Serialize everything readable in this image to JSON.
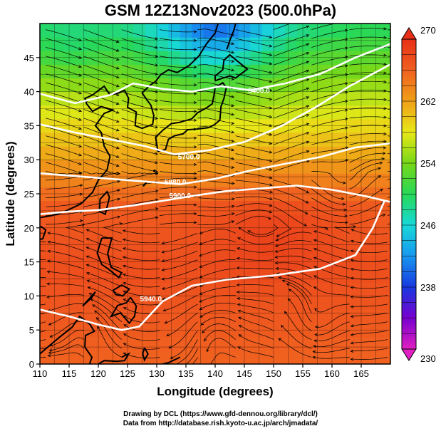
{
  "title": "GSM 12Z13Nov2023 (500.0hPa)",
  "xaxis": {
    "label": "Longitude (degrees)",
    "range": [
      110,
      170
    ],
    "ticks": [
      110,
      115,
      120,
      125,
      130,
      135,
      140,
      145,
      150,
      155,
      160,
      165
    ]
  },
  "yaxis": {
    "label": "Latitude  (degrees)",
    "range": [
      0,
      50
    ],
    "ticks": [
      0,
      5,
      10,
      15,
      20,
      25,
      30,
      35,
      40,
      45
    ]
  },
  "colorbar": {
    "min": 230,
    "max": 270,
    "tick_labels": [
      {
        "value": 270,
        "label": "270"
      },
      {
        "value": 262,
        "label": "262"
      },
      {
        "value": 254,
        "label": "254"
      },
      {
        "value": 246,
        "label": "246"
      },
      {
        "value": 238,
        "label": "238"
      },
      {
        "value": 230,
        "label": "230"
      }
    ],
    "colors": [
      "#e020c0",
      "#7800d0",
      "#1838e0",
      "#1898f0",
      "#18d8d8",
      "#28d858",
      "#78d818",
      "#e8e818",
      "#f0a018",
      "#f06020",
      "#e83018"
    ]
  },
  "contours": [
    {
      "label": "5400.0",
      "label_lon": 147.5,
      "label_lat": 40.2,
      "points": [
        [
          110,
          39.7
        ],
        [
          116,
          38.3
        ],
        [
          122,
          39.5
        ],
        [
          126,
          41.2
        ],
        [
          131,
          40.4
        ],
        [
          136,
          40.0
        ],
        [
          141,
          40.8
        ],
        [
          146,
          40.2
        ],
        [
          152,
          41.2
        ],
        [
          158,
          42.6
        ],
        [
          164,
          45.0
        ],
        [
          170,
          47.0
        ]
      ]
    },
    {
      "label": "5700.0",
      "label_lon": 135.5,
      "label_lat": 30.5,
      "points": [
        [
          110,
          35.2
        ],
        [
          116,
          34.0
        ],
        [
          122,
          33.0
        ],
        [
          128,
          32.0
        ],
        [
          133,
          30.8
        ],
        [
          139,
          31.4
        ],
        [
          145,
          32.6
        ],
        [
          151,
          34.8
        ],
        [
          157,
          37.6
        ],
        [
          163,
          40.8
        ],
        [
          170,
          44.0
        ]
      ]
    },
    {
      "label": "5880.0",
      "label_lon": 133.2,
      "label_lat": 26.8,
      "points": [
        [
          110,
          28.0
        ],
        [
          116,
          27.6
        ],
        [
          122,
          27.2
        ],
        [
          128,
          26.8
        ],
        [
          134,
          26.4
        ],
        [
          140,
          27.2
        ],
        [
          146,
          28.4
        ],
        [
          152,
          29.4
        ],
        [
          158,
          30.4
        ],
        [
          164,
          31.8
        ],
        [
          170,
          32.4
        ]
      ]
    },
    {
      "label": "5900.0",
      "label_lon": 134.0,
      "label_lat": 24.8,
      "points": [
        [
          110,
          22.0
        ],
        [
          115,
          22.4
        ],
        [
          120,
          22.6
        ],
        [
          126,
          23.3
        ],
        [
          132,
          24.1
        ],
        [
          137,
          24.8
        ],
        [
          142,
          25.4
        ],
        [
          148,
          25.8
        ],
        [
          154,
          26.2
        ],
        [
          160,
          25.6
        ],
        [
          166,
          24.6
        ],
        [
          170,
          23.8
        ]
      ]
    },
    {
      "label": "5940.0",
      "label_lon": 129.0,
      "label_lat": 9.6,
      "points": [
        [
          110,
          8.0
        ],
        [
          115,
          7.0
        ],
        [
          120,
          5.8
        ],
        [
          124,
          5.0
        ],
        [
          127,
          5.5
        ],
        [
          131,
          9.2
        ],
        [
          136,
          11.5
        ],
        [
          142,
          12.4
        ],
        [
          150,
          13.0
        ],
        [
          158,
          14.0
        ],
        [
          164,
          16.0
        ],
        [
          167,
          20.0
        ],
        [
          169,
          24.0
        ]
      ]
    }
  ],
  "credits": {
    "line1": "Drawing by DCL (https://www.gfd-dennou.org/library/dcl/)",
    "line2": "Data from http://database.rish.kyoto-u.ac.jp/arch/jmadata/"
  }
}
